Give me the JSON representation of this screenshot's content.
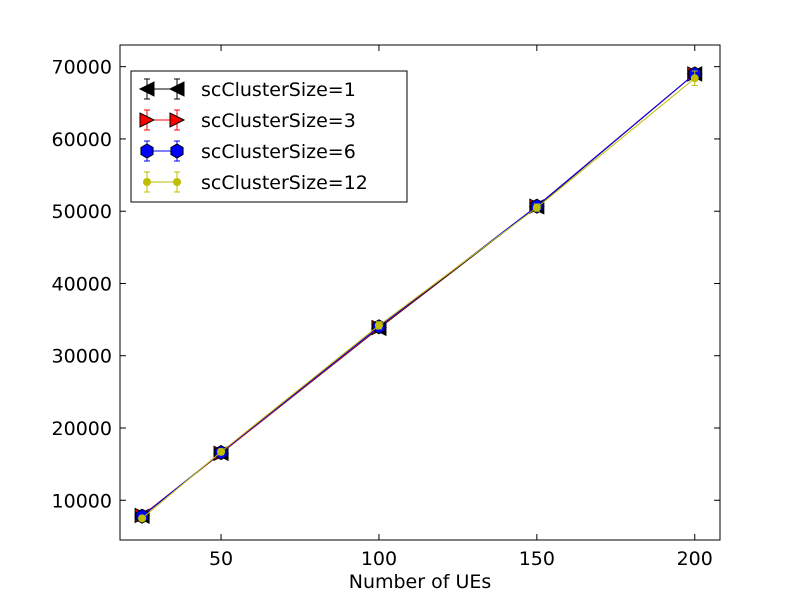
{
  "chart_data": {
    "type": "line",
    "title": "",
    "xlabel": "Number of UEs",
    "ylabel": "",
    "xlim": [
      18,
      208
    ],
    "ylim": [
      4500,
      73000
    ],
    "x": [
      25,
      50,
      100,
      150,
      200
    ],
    "xticks": [
      50,
      100,
      150,
      200
    ],
    "xtick_labels": [
      "50",
      "100",
      "150",
      "200"
    ],
    "yticks": [
      10000,
      20000,
      30000,
      40000,
      50000,
      60000,
      70000
    ],
    "ytick_labels": [
      "10000",
      "20000",
      "30000",
      "40000",
      "50000",
      "60000",
      "70000"
    ],
    "grid": false,
    "legend_position": "upper-left",
    "series": [
      {
        "name": "scClusterSize=1",
        "values": [
          7800,
          16500,
          33800,
          50600,
          69000
        ],
        "errors": [
          300,
          400,
          500,
          500,
          700
        ],
        "color": "#000000",
        "marker": "triangle-left"
      },
      {
        "name": "scClusterSize=3",
        "values": [
          7900,
          16500,
          33900,
          50700,
          69000
        ],
        "errors": [
          300,
          400,
          500,
          500,
          700
        ],
        "color": "#ff0000",
        "marker": "triangle-right"
      },
      {
        "name": "scClusterSize=6",
        "values": [
          7800,
          16600,
          34000,
          50700,
          69000
        ],
        "errors": [
          300,
          400,
          500,
          500,
          700
        ],
        "color": "#0000ff",
        "marker": "hexagon"
      },
      {
        "name": "scClusterSize=12",
        "values": [
          7500,
          16700,
          34200,
          50500,
          68400
        ],
        "errors": [
          300,
          400,
          500,
          500,
          1000
        ],
        "color": "#bfbf00",
        "marker": "circle"
      }
    ]
  }
}
